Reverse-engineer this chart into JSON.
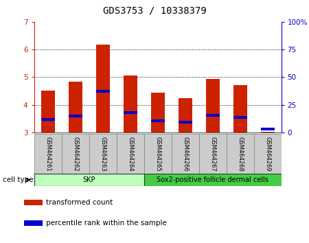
{
  "title": "GDS3753 / 10338379",
  "samples": [
    "GSM464261",
    "GSM464262",
    "GSM464263",
    "GSM464264",
    "GSM464265",
    "GSM464266",
    "GSM464267",
    "GSM464268",
    "GSM464269"
  ],
  "red_values": [
    4.52,
    4.83,
    6.18,
    5.05,
    4.43,
    4.25,
    4.93,
    4.72,
    3.03
  ],
  "blue_values": [
    3.47,
    3.59,
    4.48,
    3.73,
    3.42,
    3.37,
    3.63,
    3.54,
    3.13
  ],
  "bar_bottom": 3.0,
  "ylim_left": [
    3,
    7
  ],
  "ylim_right": [
    0,
    100
  ],
  "yticks_left": [
    3,
    4,
    5,
    6,
    7
  ],
  "yticks_right": [
    0,
    25,
    50,
    75,
    100
  ],
  "yticklabels_right": [
    "0",
    "25",
    "50",
    "75",
    "100%"
  ],
  "red_color": "#cc2200",
  "blue_color": "#0000cc",
  "grid_color": "#000000",
  "cell_type_groups": [
    {
      "label": "SKP",
      "start": 0,
      "end": 3,
      "color": "#bbffbb"
    },
    {
      "label": "Sox2-positive follicle dermal cells",
      "start": 4,
      "end": 8,
      "color": "#44dd44"
    }
  ],
  "cell_type_label": "cell type",
  "legend_items": [
    {
      "label": "transformed count",
      "color": "#cc2200"
    },
    {
      "label": "percentile rank within the sample",
      "color": "#0000cc"
    }
  ],
  "bar_width": 0.5,
  "tick_label_fontsize": 7.5,
  "title_fontsize": 10,
  "axis_label_fontsize": 8,
  "sample_box_color": "#cccccc",
  "sample_box_edge": "#888888"
}
